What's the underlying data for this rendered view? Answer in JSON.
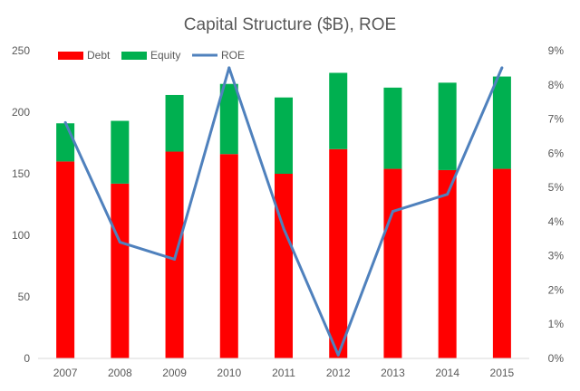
{
  "chart_data": {
    "type": "bar",
    "subtype": "stacked-bar-with-line",
    "title": "Capital Structure ($B), ROE",
    "categories": [
      "2007",
      "2008",
      "2009",
      "2010",
      "2011",
      "2012",
      "2013",
      "2014",
      "2015"
    ],
    "series": [
      {
        "name": "Debt",
        "type": "bar",
        "axis": "left",
        "color": "#ff0000",
        "values": [
          160,
          142,
          168,
          166,
          150,
          170,
          154,
          153,
          154
        ]
      },
      {
        "name": "Equity",
        "type": "bar",
        "axis": "left",
        "color": "#00b050",
        "values": [
          31,
          51,
          46,
          57,
          62,
          62,
          66,
          71,
          75
        ]
      },
      {
        "name": "ROE",
        "type": "line",
        "axis": "right",
        "color": "#4f81bd",
        "values": [
          6.9,
          3.4,
          2.9,
          8.5,
          3.8,
          0.1,
          4.3,
          4.8,
          8.5
        ]
      }
    ],
    "left_axis": {
      "ylim": [
        0,
        250
      ],
      "ticks": [
        "0",
        "50",
        "100",
        "150",
        "200",
        "250"
      ]
    },
    "right_axis": {
      "ylim": [
        0,
        9
      ],
      "ticks": [
        "0%",
        "1%",
        "2%",
        "3%",
        "4%",
        "5%",
        "6%",
        "7%",
        "8%",
        "9%"
      ]
    },
    "legend": {
      "placement": "top-left"
    },
    "grid": false
  }
}
